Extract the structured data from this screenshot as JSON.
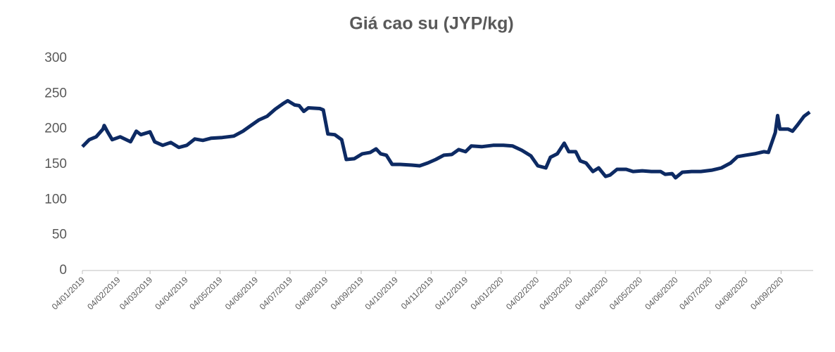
{
  "chart_data": {
    "type": "line",
    "title": "Giá cao su (JYP/kg)",
    "x": [
      "2019-01-04",
      "2019-01-10",
      "2019-01-16",
      "2019-01-22",
      "2019-01-23",
      "2019-01-26",
      "2019-01-30",
      "2019-02-06",
      "2019-02-15",
      "2019-02-20",
      "2019-02-24",
      "2019-03-04",
      "2019-03-08",
      "2019-03-15",
      "2019-03-22",
      "2019-03-29",
      "2019-04-05",
      "2019-04-12",
      "2019-04-19",
      "2019-04-26",
      "2019-05-06",
      "2019-05-16",
      "2019-05-24",
      "2019-05-31",
      "2019-06-07",
      "2019-06-14",
      "2019-06-21",
      "2019-06-28",
      "2019-07-02",
      "2019-07-08",
      "2019-07-12",
      "2019-07-16",
      "2019-07-20",
      "2019-07-30",
      "2019-08-02",
      "2019-08-06",
      "2019-08-12",
      "2019-08-18",
      "2019-08-22",
      "2019-08-29",
      "2019-09-05",
      "2019-09-12",
      "2019-09-17",
      "2019-09-21",
      "2019-09-26",
      "2019-10-01",
      "2019-10-08",
      "2019-10-18",
      "2019-10-25",
      "2019-11-01",
      "2019-11-08",
      "2019-11-15",
      "2019-11-22",
      "2019-11-28",
      "2019-12-04",
      "2019-12-09",
      "2019-12-18",
      "2019-12-28",
      "2020-01-06",
      "2020-01-14",
      "2020-01-22",
      "2020-01-30",
      "2020-02-05",
      "2020-02-12",
      "2020-02-16",
      "2020-02-22",
      "2020-02-28",
      "2020-03-03",
      "2020-03-09",
      "2020-03-13",
      "2020-03-18",
      "2020-03-24",
      "2020-03-29",
      "2020-04-04",
      "2020-04-08",
      "2020-04-14",
      "2020-04-22",
      "2020-04-28",
      "2020-05-06",
      "2020-05-14",
      "2020-05-22",
      "2020-05-26",
      "2020-06-01",
      "2020-06-04",
      "2020-06-10",
      "2020-06-18",
      "2020-06-26",
      "2020-07-06",
      "2020-07-14",
      "2020-07-22",
      "2020-07-28",
      "2020-08-04",
      "2020-08-12",
      "2020-08-20",
      "2020-08-24",
      "2020-08-30",
      "2020-09-01",
      "2020-09-03",
      "2020-09-10",
      "2020-09-14",
      "2020-09-18",
      "2020-09-24",
      "2020-09-29"
    ],
    "series": [
      {
        "color": "#0d2a63",
        "values": [
          175,
          185,
          189,
          200,
          205,
          196,
          185,
          189,
          182,
          197,
          192,
          196,
          182,
          177,
          181,
          174,
          177,
          186,
          184,
          187,
          188,
          190,
          197,
          205,
          213,
          218,
          228,
          236,
          240,
          234,
          233,
          225,
          230,
          229,
          227,
          193,
          192,
          185,
          157,
          158,
          165,
          167,
          172,
          165,
          163,
          150,
          150,
          149,
          148,
          152,
          157,
          163,
          164,
          171,
          168,
          176,
          175,
          177,
          177,
          176,
          170,
          162,
          148,
          145,
          160,
          165,
          180,
          168,
          168,
          155,
          152,
          140,
          145,
          133,
          135,
          143,
          143,
          140,
          141,
          140,
          140,
          136,
          137,
          131,
          139,
          140,
          140,
          142,
          145,
          152,
          161,
          163,
          165,
          168,
          167,
          195,
          219,
          200,
          200,
          197,
          205,
          218,
          224
        ]
      }
    ],
    "xlim": [
      "2019-01-04",
      "2020-10-02"
    ],
    "xticks": [
      {
        "value": "2019-01-04",
        "label": "04/01/2019"
      },
      {
        "value": "2019-02-04",
        "label": "04/02/2019"
      },
      {
        "value": "2019-03-04",
        "label": "04/03/2019"
      },
      {
        "value": "2019-04-04",
        "label": "04/04/2019"
      },
      {
        "value": "2019-05-04",
        "label": "04/05/2019"
      },
      {
        "value": "2019-06-04",
        "label": "04/06/2019"
      },
      {
        "value": "2019-07-04",
        "label": "04/07/2019"
      },
      {
        "value": "2019-08-04",
        "label": "04/08/2019"
      },
      {
        "value": "2019-09-04",
        "label": "04/09/2019"
      },
      {
        "value": "2019-10-04",
        "label": "04/10/2019"
      },
      {
        "value": "2019-11-04",
        "label": "04/11/2019"
      },
      {
        "value": "2019-12-04",
        "label": "04/12/2019"
      },
      {
        "value": "2020-01-04",
        "label": "04/01/2020"
      },
      {
        "value": "2020-02-04",
        "label": "04/02/2020"
      },
      {
        "value": "2020-03-04",
        "label": "04/03/2020"
      },
      {
        "value": "2020-04-04",
        "label": "04/04/2020"
      },
      {
        "value": "2020-05-04",
        "label": "04/05/2020"
      },
      {
        "value": "2020-06-04",
        "label": "04/06/2020"
      },
      {
        "value": "2020-07-04",
        "label": "04/07/2020"
      },
      {
        "value": "2020-08-04",
        "label": "04/08/2020"
      },
      {
        "value": "2020-09-04",
        "label": "04/09/2020"
      }
    ],
    "ylim": [
      0,
      300
    ],
    "yticks": [
      0,
      50,
      100,
      150,
      200,
      250,
      300
    ],
    "grid": false
  }
}
